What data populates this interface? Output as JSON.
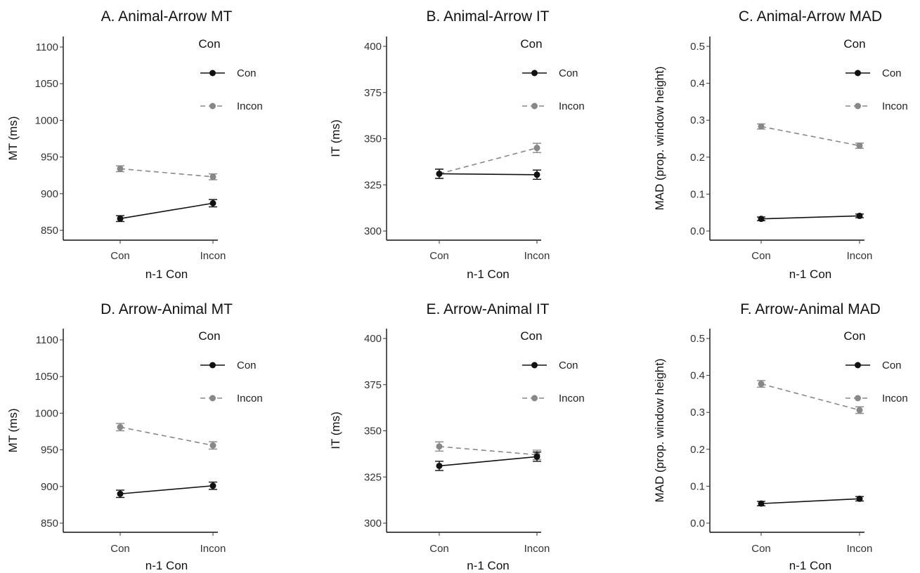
{
  "chart_data": [
    {
      "type": "line",
      "title": "A. Animal-Arrow MT",
      "xlabel": "n-1 Con",
      "ylabel": "MT (ms)",
      "categories": [
        "Con",
        "Incon"
      ],
      "ylim": [
        840,
        1110
      ],
      "yticks": [
        "850",
        "900",
        "950",
        "1000",
        "1050",
        "1100"
      ],
      "legend": {
        "title": "Con",
        "position": "top-right"
      },
      "series": [
        {
          "name": "Con",
          "values": [
            866,
            887
          ],
          "errors": [
            4,
            5
          ],
          "color": "#111111",
          "dash": "solid"
        },
        {
          "name": "Incon",
          "values": [
            934,
            923
          ],
          "errors": [
            4,
            4
          ],
          "color": "#888888",
          "dash": "dashed"
        }
      ]
    },
    {
      "type": "line",
      "title": "B. Animal-Arrow IT",
      "xlabel": "n-1 Con",
      "ylabel": "IT (ms)",
      "categories": [
        "Con",
        "Incon"
      ],
      "ylim": [
        296,
        402
      ],
      "yticks": [
        "300",
        "325",
        "350",
        "375",
        "400"
      ],
      "legend": {
        "title": "Con",
        "position": "top-right"
      },
      "series": [
        {
          "name": "Con",
          "values": [
            331,
            330.5
          ],
          "errors": [
            2.5,
            2.5
          ],
          "color": "#111111",
          "dash": "solid"
        },
        {
          "name": "Incon",
          "values": [
            331,
            345
          ],
          "errors": [
            2.5,
            2.5
          ],
          "color": "#888888",
          "dash": "dashed"
        }
      ]
    },
    {
      "type": "line",
      "title": "C. Animal-Arrow MAD",
      "xlabel": "n-1 Con",
      "ylabel": "MAD (prop. window height)",
      "categories": [
        "Con",
        "Incon"
      ],
      "ylim": [
        -0.02,
        0.51
      ],
      "yticks": [
        "0.0",
        "0.1",
        "0.2",
        "0.3",
        "0.4",
        "0.5"
      ],
      "legend": {
        "title": "Con",
        "position": "top-right"
      },
      "series": [
        {
          "name": "Con",
          "values": [
            0.033,
            0.041
          ],
          "errors": [
            0.005,
            0.005
          ],
          "color": "#111111",
          "dash": "solid"
        },
        {
          "name": "Incon",
          "values": [
            0.283,
            0.231
          ],
          "errors": [
            0.007,
            0.007
          ],
          "color": "#888888",
          "dash": "dashed"
        }
      ]
    },
    {
      "type": "line",
      "title": "D. Arrow-Animal MT",
      "xlabel": "n-1 Con",
      "ylabel": "MT (ms)",
      "categories": [
        "Con",
        "Incon"
      ],
      "ylim": [
        840,
        1110
      ],
      "yticks": [
        "850",
        "900",
        "950",
        "1000",
        "1050",
        "1100"
      ],
      "legend": {
        "title": "Con",
        "position": "top-right"
      },
      "series": [
        {
          "name": "Con",
          "values": [
            890,
            901
          ],
          "errors": [
            5,
            5
          ],
          "color": "#111111",
          "dash": "solid"
        },
        {
          "name": "Incon",
          "values": [
            981,
            956
          ],
          "errors": [
            5,
            5
          ],
          "color": "#888888",
          "dash": "dashed"
        }
      ]
    },
    {
      "type": "line",
      "title": "E. Arrow-Animal IT",
      "xlabel": "n-1 Con",
      "ylabel": "IT (ms)",
      "categories": [
        "Con",
        "Incon"
      ],
      "ylim": [
        296,
        402
      ],
      "yticks": [
        "300",
        "325",
        "350",
        "375",
        "400"
      ],
      "legend": {
        "title": "Con",
        "position": "top-right"
      },
      "series": [
        {
          "name": "Con",
          "values": [
            331,
            336
          ],
          "errors": [
            2.5,
            2.5
          ],
          "color": "#111111",
          "dash": "solid"
        },
        {
          "name": "Incon",
          "values": [
            341.5,
            337
          ],
          "errors": [
            2.5,
            2.5
          ],
          "color": "#888888",
          "dash": "dashed"
        }
      ]
    },
    {
      "type": "line",
      "title": "F. Arrow-Animal MAD",
      "xlabel": "n-1 Con",
      "ylabel": "MAD (prop. window height)",
      "categories": [
        "Con",
        "Incon"
      ],
      "ylim": [
        -0.02,
        0.51
      ],
      "yticks": [
        "0.0",
        "0.1",
        "0.2",
        "0.3",
        "0.4",
        "0.5"
      ],
      "legend": {
        "title": "Con",
        "position": "top-right"
      },
      "series": [
        {
          "name": "Con",
          "values": [
            0.053,
            0.066
          ],
          "errors": [
            0.006,
            0.006
          ],
          "color": "#111111",
          "dash": "solid"
        },
        {
          "name": "Incon",
          "values": [
            0.377,
            0.306
          ],
          "errors": [
            0.009,
            0.009
          ],
          "color": "#888888",
          "dash": "dashed"
        }
      ]
    }
  ]
}
